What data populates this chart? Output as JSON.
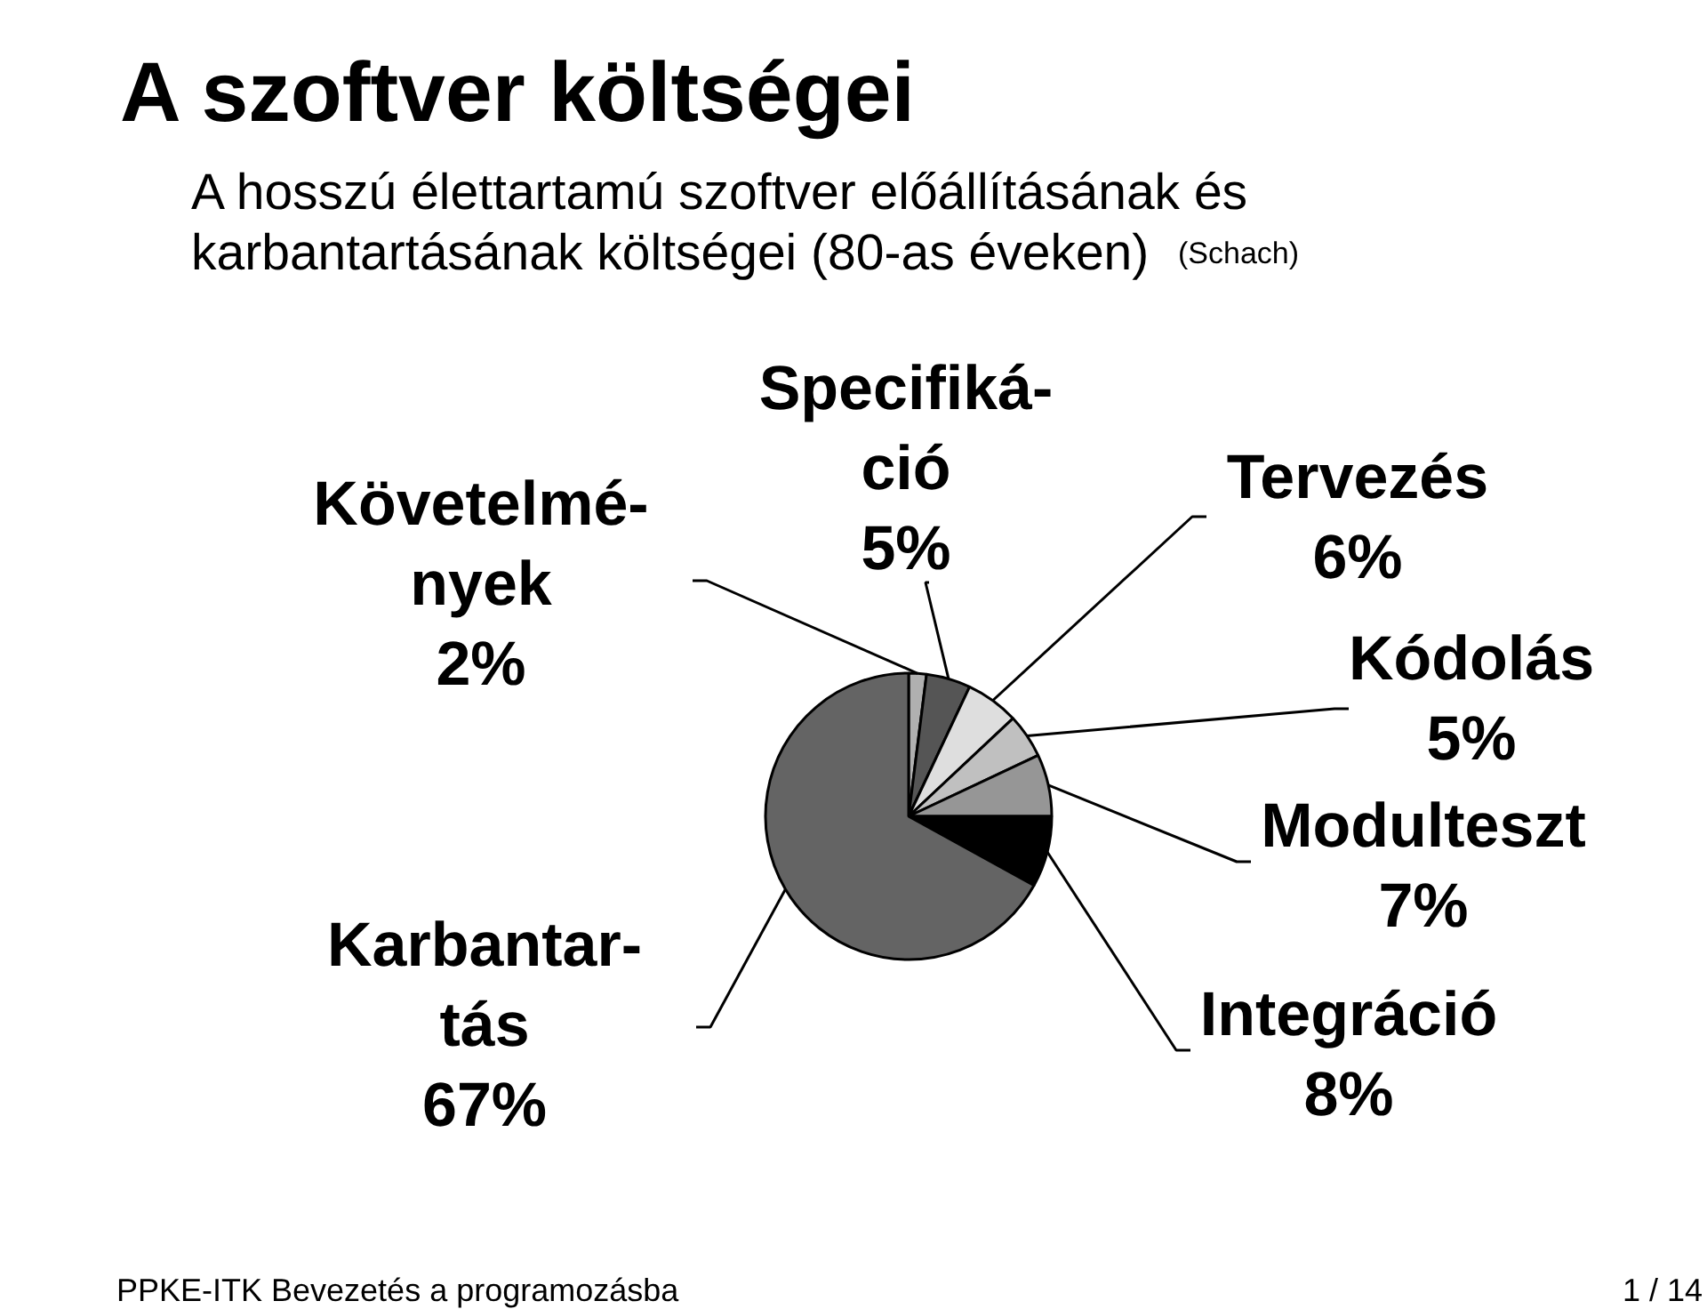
{
  "chart_data": {
    "type": "pie",
    "title": "A szoftver költségei",
    "subtitle": "A hosszú élettartamú szoftver előállításának és\nkarbantartásának költségei (80-as éveken) (Schach)",
    "annotations": [
      "PPKE-ITK Bevezetés a programozásba",
      "1 / 14"
    ],
    "categories": [
      "Követelmé-\nnyek",
      "Specifiká-\nció",
      "Tervezés",
      "Kódolás",
      "Modulteszt",
      "Integráció",
      "Karbantar-\ntás"
    ],
    "values": [
      2,
      5,
      6,
      5,
      7,
      8,
      67
    ],
    "colors": [
      "#b0b0b0",
      "#555555",
      "#dedede",
      "#c0c0c0",
      "#969696",
      "#000000",
      "#646464"
    ],
    "value_labels": [
      "2%",
      "5%",
      "6%",
      "5%",
      "7%",
      "8%",
      "67%"
    ]
  }
}
